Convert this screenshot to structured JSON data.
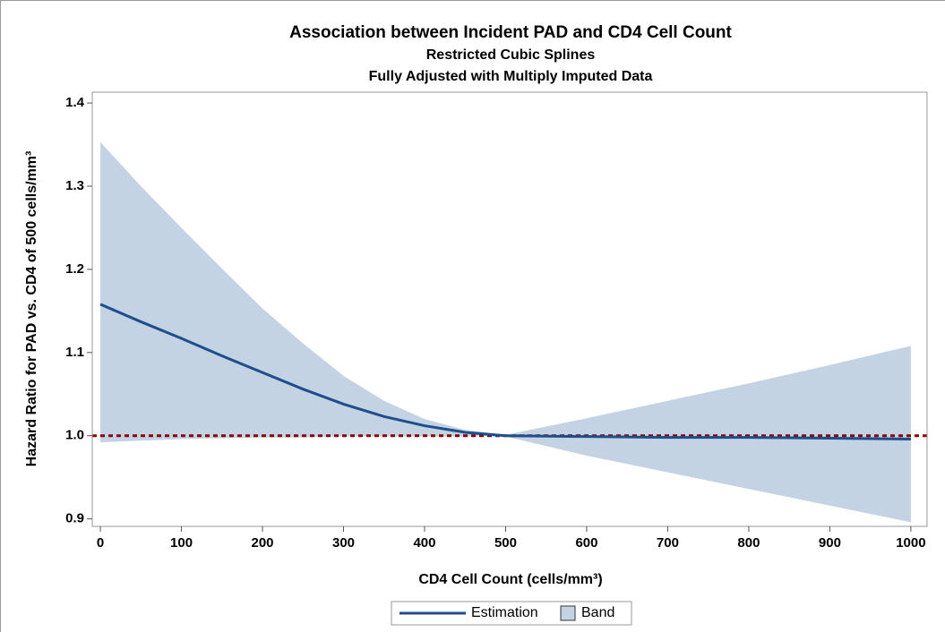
{
  "chart_data": {
    "type": "line",
    "title": "Association between Incident PAD and CD4 Cell Count",
    "subtitle": [
      "Restricted Cubic Splines",
      "Fully Adjusted with Multiply Imputed Data"
    ],
    "x_label": "CD4 Cell Count (cells/mm³)",
    "y_label": "Hazard Ratio for PAD vs. CD4 of 500 cells/mm³",
    "x": [
      0,
      50,
      100,
      150,
      200,
      250,
      300,
      350,
      400,
      450,
      500,
      600,
      700,
      800,
      900,
      1000
    ],
    "series": [
      {
        "name": "Estimation",
        "color": "#1f4e8c",
        "values": [
          1.158,
          1.137,
          1.117,
          1.096,
          1.076,
          1.056,
          1.038,
          1.023,
          1.012,
          1.004,
          1.0,
          0.999,
          0.998,
          0.998,
          0.997,
          0.996
        ]
      }
    ],
    "band": {
      "name": "Band",
      "color": "#c3d3e4",
      "upper": [
        1.353,
        1.3,
        1.25,
        1.201,
        1.153,
        1.111,
        1.072,
        1.042,
        1.02,
        1.007,
        1.001,
        1.021,
        1.042,
        1.063,
        1.085,
        1.108
      ],
      "lower": [
        0.992,
        0.994,
        0.996,
        0.997,
        0.998,
        0.998,
        0.999,
        0.999,
        0.999,
        0.999,
        0.999,
        0.976,
        0.956,
        0.936,
        0.916,
        0.896
      ]
    },
    "reference_line": 1,
    "reference_color": "#8b0000",
    "xlim": [
      -10,
      1020
    ],
    "ylim": [
      0.891,
      1.413
    ],
    "xticks": [
      0,
      100,
      200,
      300,
      400,
      500,
      600,
      700,
      800,
      900,
      1000
    ],
    "yticks": [
      {
        "value": 0.9,
        "label": "0.9"
      },
      {
        "value": 1.0,
        "label": "1.0"
      },
      {
        "value": 1.1,
        "label": "1.1"
      },
      {
        "value": 1.2,
        "label": "1.2"
      },
      {
        "value": 1.3,
        "label": "1.3"
      },
      {
        "value": 1.4,
        "label": "1.4"
      }
    ]
  }
}
